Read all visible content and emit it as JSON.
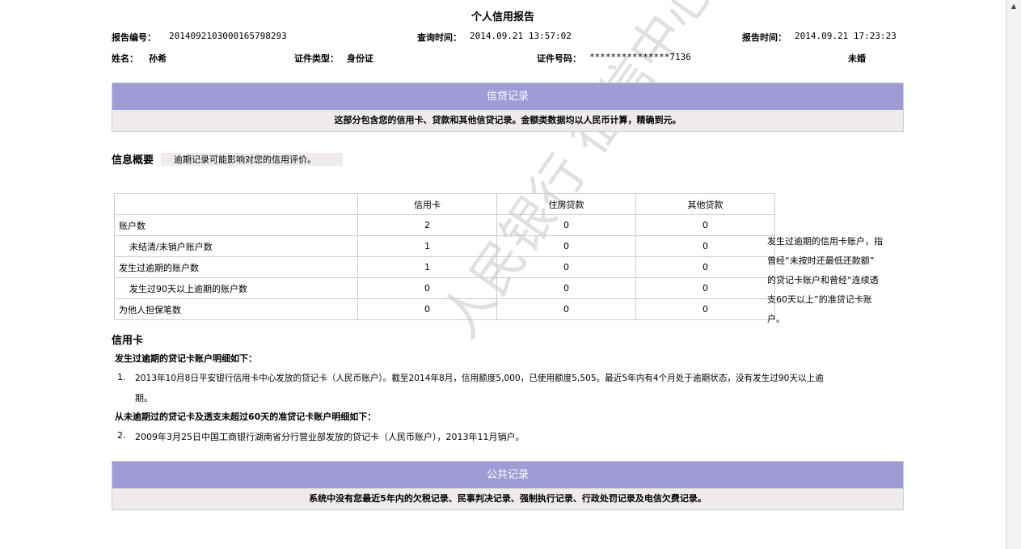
{
  "title": "个人信用报告",
  "header": {
    "report_no_label": "报告编号：",
    "report_no": "2014092103000165798293",
    "query_time_label": "查询时间：",
    "query_time": "2014.09.21 13:57:02",
    "report_time_label": "报告时间：",
    "report_time": "2014.09.21 17:23:23",
    "name_label": "姓名：",
    "name": "孙希",
    "id_type_label": "证件类型：",
    "id_type": "身份证",
    "id_no_label": "证件号码：",
    "id_no": "***************7136",
    "marital": "未婚"
  },
  "credit": {
    "heading": "信贷记录",
    "subtitle": "这部分包含您的信用卡、贷款和其他信贷记录。金额类数据均以人民币计算，精确到元。"
  },
  "overview": {
    "label": "信息概要",
    "note": "逾期记录可能影响对您的信用评价。",
    "columns": [
      "",
      "信用卡",
      "住房贷款",
      "其他贷款"
    ],
    "rows": [
      [
        "账户数",
        "2",
        "0",
        "0"
      ],
      [
        "未结清/未销户账户数",
        "1",
        "0",
        "0"
      ],
      [
        "发生过逾期的账户数",
        "1",
        "0",
        "0"
      ],
      [
        "发生过90天以上逾期的账户数",
        "0",
        "0",
        "0"
      ],
      [
        "为他人担保笔数",
        "0",
        "0",
        "0"
      ]
    ],
    "side_note": [
      "发生过逾期的信用卡账户，指",
      "曾经“未按时还最低还款额”",
      "的贷记卡账户和曾经“连续透",
      "支60天以上”的准贷记卡账",
      "户。"
    ]
  },
  "card": {
    "heading": "信用卡",
    "overdue_title": "发生过逾期的贷记卡账户明细如下：",
    "item1_no": "1.",
    "item1_line1": "2013年10月8日平安银行信用卡中心发放的贷记卡（人民币账户）。截至2014年8月，信用额度5,000，已使用额度5,505。最近5年内有4个月处于逾期状态，没有发生过90天以上逾",
    "item1_line2": "期。",
    "normal_title": "从未逾期过的贷记卡及透支未超过60天的准贷记卡账户明细如下：",
    "item2_no": "2.",
    "item2": "2009年3月25日中国工商银行湖南省分行营业部发放的贷记卡（人民币账户），2013年11月销户。"
  },
  "public": {
    "heading": "公共记录",
    "subtitle": "系统中没有您最近5年内的欠税记录、民事判决记录、强制执行记录、行政处罚记录及电信欠费记录。"
  },
  "watermark": "人民银行征信中心"
}
